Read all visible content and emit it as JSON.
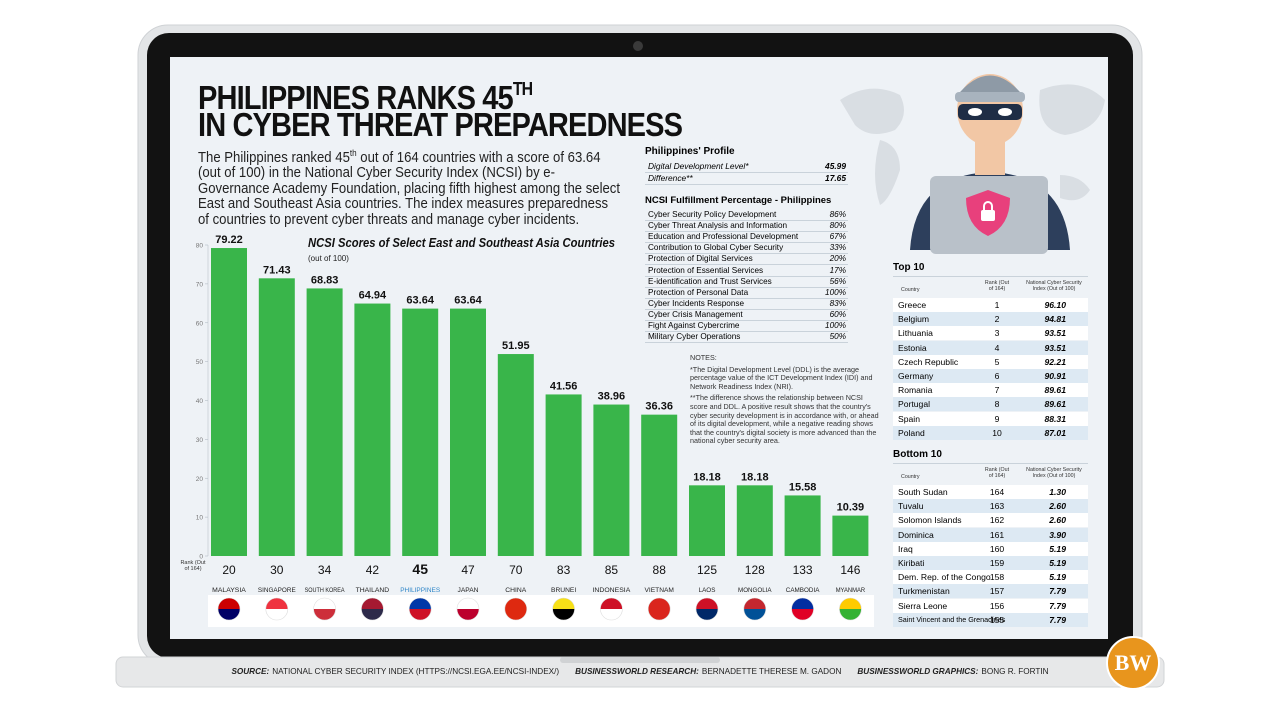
{
  "header": {
    "title_line1": "PHILIPPINES RANKS 45",
    "title_sup": "TH",
    "title_line2": "IN CYBER THREAT PREPAREDNESS",
    "intro": [
      "The Philippines ranked 45",
      "th",
      " out of 164 countries with a score of 63.64 (out of 100) in the National Cyber Security Index (NCSI) by e-Governance Academy Foundation, placing fifth highest among the select East and Southeast Asia countries. The index measures preparedness of countries to prevent cyber threats and manage cyber incidents."
    ]
  },
  "chart_data": {
    "type": "bar",
    "title": "NCSI Scores of Select East and Southeast Asia Countries",
    "subtitle": "(out of 100)",
    "categories": [
      "MALAYSIA",
      "SINGAPORE",
      "SOUTH KOREA",
      "THAILAND",
      "PHILIPPINES",
      "JAPAN",
      "CHINA",
      "BRUNEI",
      "INDONESIA",
      "VIETNAM",
      "LAOS",
      "MONGOLIA",
      "CAMBODIA",
      "MYANMAR"
    ],
    "values": [
      79.22,
      71.43,
      68.83,
      64.94,
      63.64,
      63.64,
      51.95,
      41.56,
      38.96,
      36.36,
      18.18,
      18.18,
      15.58,
      10.39
    ],
    "rank_label": "Rank (Out of 164)",
    "ranks": [
      20,
      30,
      34,
      42,
      45,
      47,
      70,
      83,
      85,
      88,
      125,
      128,
      133,
      146
    ],
    "highlight": "PHILIPPINES",
    "highlight_color": "#2f86c8",
    "color": "#39b54a",
    "ylim": [
      0,
      80
    ],
    "yticks": [
      0,
      10,
      20,
      30,
      40,
      50,
      60,
      70,
      80
    ],
    "grid": false
  },
  "profile": {
    "title": "Philippines' Profile",
    "rows": [
      [
        "Digital Development Level*",
        "45.99"
      ],
      [
        "Difference**",
        "17.65"
      ]
    ]
  },
  "fulfillment": {
    "title": "NCSI Fulfillment Percentage - Philippines",
    "rows": [
      [
        "Cyber Security Policy Development",
        "86%"
      ],
      [
        "Cyber Threat Analysis and Information",
        "80%"
      ],
      [
        "Education and Professional Development",
        "67%"
      ],
      [
        "Contribution to Global Cyber Security",
        "33%"
      ],
      [
        "Protection of Digital Services",
        "20%"
      ],
      [
        "Protection of Essential Services",
        "17%"
      ],
      [
        "E-identification and Trust Services",
        "56%"
      ],
      [
        "Protection of Personal Data",
        "100%"
      ],
      [
        "Cyber Incidents Response",
        "83%"
      ],
      [
        "Cyber Crisis Management",
        "60%"
      ],
      [
        "Fight Against Cybercrime",
        "100%"
      ],
      [
        "Military Cyber Operations",
        "50%"
      ]
    ]
  },
  "notes": {
    "title": "NOTES:",
    "items": [
      "*The Digital Development Level (DDL) is the average percentage value of the ICT Development Index (IDI) and Network Readiness Index (NRI).",
      "**The difference shows the relationship between NCSI score and DDL. A positive result shows that the country's cyber security development is in accordance with, or ahead of its digital development, while a negative reading shows that the country's digital society is more advanced than the national cyber security area."
    ]
  },
  "top10": {
    "title": "Top 10",
    "columns": [
      "Country",
      "Rank (Out of 164)",
      "National Cyber Security Index (Out of 100)"
    ],
    "rows": [
      [
        "Greece",
        "1",
        "96.10"
      ],
      [
        "Belgium",
        "2",
        "94.81"
      ],
      [
        "Lithuania",
        "3",
        "93.51"
      ],
      [
        "Estonia",
        "4",
        "93.51"
      ],
      [
        "Czech Republic",
        "5",
        "92.21"
      ],
      [
        "Germany",
        "6",
        "90.91"
      ],
      [
        "Romania",
        "7",
        "89.61"
      ],
      [
        "Portugal",
        "8",
        "89.61"
      ],
      [
        "Spain",
        "9",
        "88.31"
      ],
      [
        "Poland",
        "10",
        "87.01"
      ]
    ]
  },
  "bottom10": {
    "title": "Bottom 10",
    "columns": [
      "Country",
      "Rank (Out of 164)",
      "National Cyber Security Index (Out of 100)"
    ],
    "rows": [
      [
        "South Sudan",
        "164",
        "1.30"
      ],
      [
        "Tuvalu",
        "163",
        "2.60"
      ],
      [
        "Solomon Islands",
        "162",
        "2.60"
      ],
      [
        "Dominica",
        "161",
        "3.90"
      ],
      [
        "Iraq",
        "160",
        "5.19"
      ],
      [
        "Kiribati",
        "159",
        "5.19"
      ],
      [
        "Dem. Rep. of the Congo",
        "158",
        "5.19"
      ],
      [
        "Turkmenistan",
        "157",
        "7.79"
      ],
      [
        "Sierra Leone",
        "156",
        "7.79"
      ],
      [
        "Saint Vincent and the Grenadines",
        "155",
        "7.79"
      ]
    ]
  },
  "credits": [
    {
      "label": "SOURCE:",
      "value": "NATIONAL CYBER SECURITY INDEX (HTTPS://NCSI.EGA.EE/NCSI-INDEX/)"
    },
    {
      "label": "BUSINESSWORLD RESEARCH:",
      "value": "BERNADETTE THERESE M. GADON"
    },
    {
      "label": "BUSINESSWORLD GRAPHICS:",
      "value": "BONG R. FORTIN"
    }
  ],
  "logo": "BW"
}
